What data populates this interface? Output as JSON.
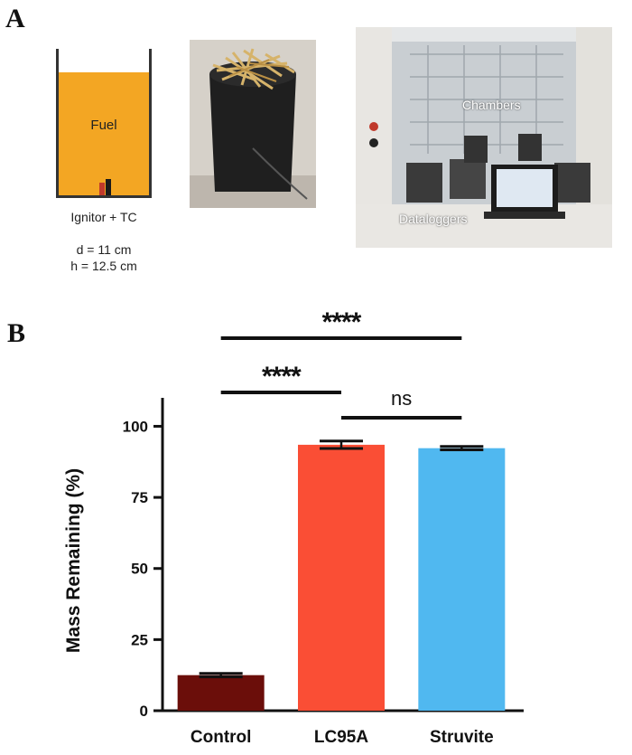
{
  "panel_a": {
    "letter": "A",
    "schematic": {
      "fuel_label": "Fuel",
      "ignitor_label": "Ignitor + TC",
      "diameter": "d = 11 cm",
      "height": "h = 12.5 cm",
      "fuel_color": "#f3a623"
    },
    "photo_lab": {
      "label_chambers": "Chambers",
      "label_dataloggers": "Dataloggers"
    }
  },
  "panel_b": {
    "letter": "B"
  },
  "chart_data": {
    "type": "bar",
    "categories": [
      "Control",
      "LC95A",
      "Struvite"
    ],
    "values": [
      12.5,
      93.5,
      92.3
    ],
    "errors": [
      0.6,
      1.3,
      0.6
    ],
    "colors": [
      "#6b0e0a",
      "#fa4e35",
      "#50b8f0"
    ],
    "ylabel": "Mass Remaining (%)",
    "ylim": [
      0,
      110
    ],
    "yticks": [
      0,
      25,
      50,
      75,
      100
    ],
    "ytick_labels": [
      "0",
      "25",
      "50",
      "75",
      "100"
    ],
    "grid": false,
    "significance": [
      {
        "from": 0,
        "to": 2,
        "label": "****",
        "level": 1
      },
      {
        "from": 0,
        "to": 1,
        "label": "****",
        "level": 2
      },
      {
        "from": 1,
        "to": 2,
        "label": "ns",
        "level": 3
      }
    ]
  }
}
